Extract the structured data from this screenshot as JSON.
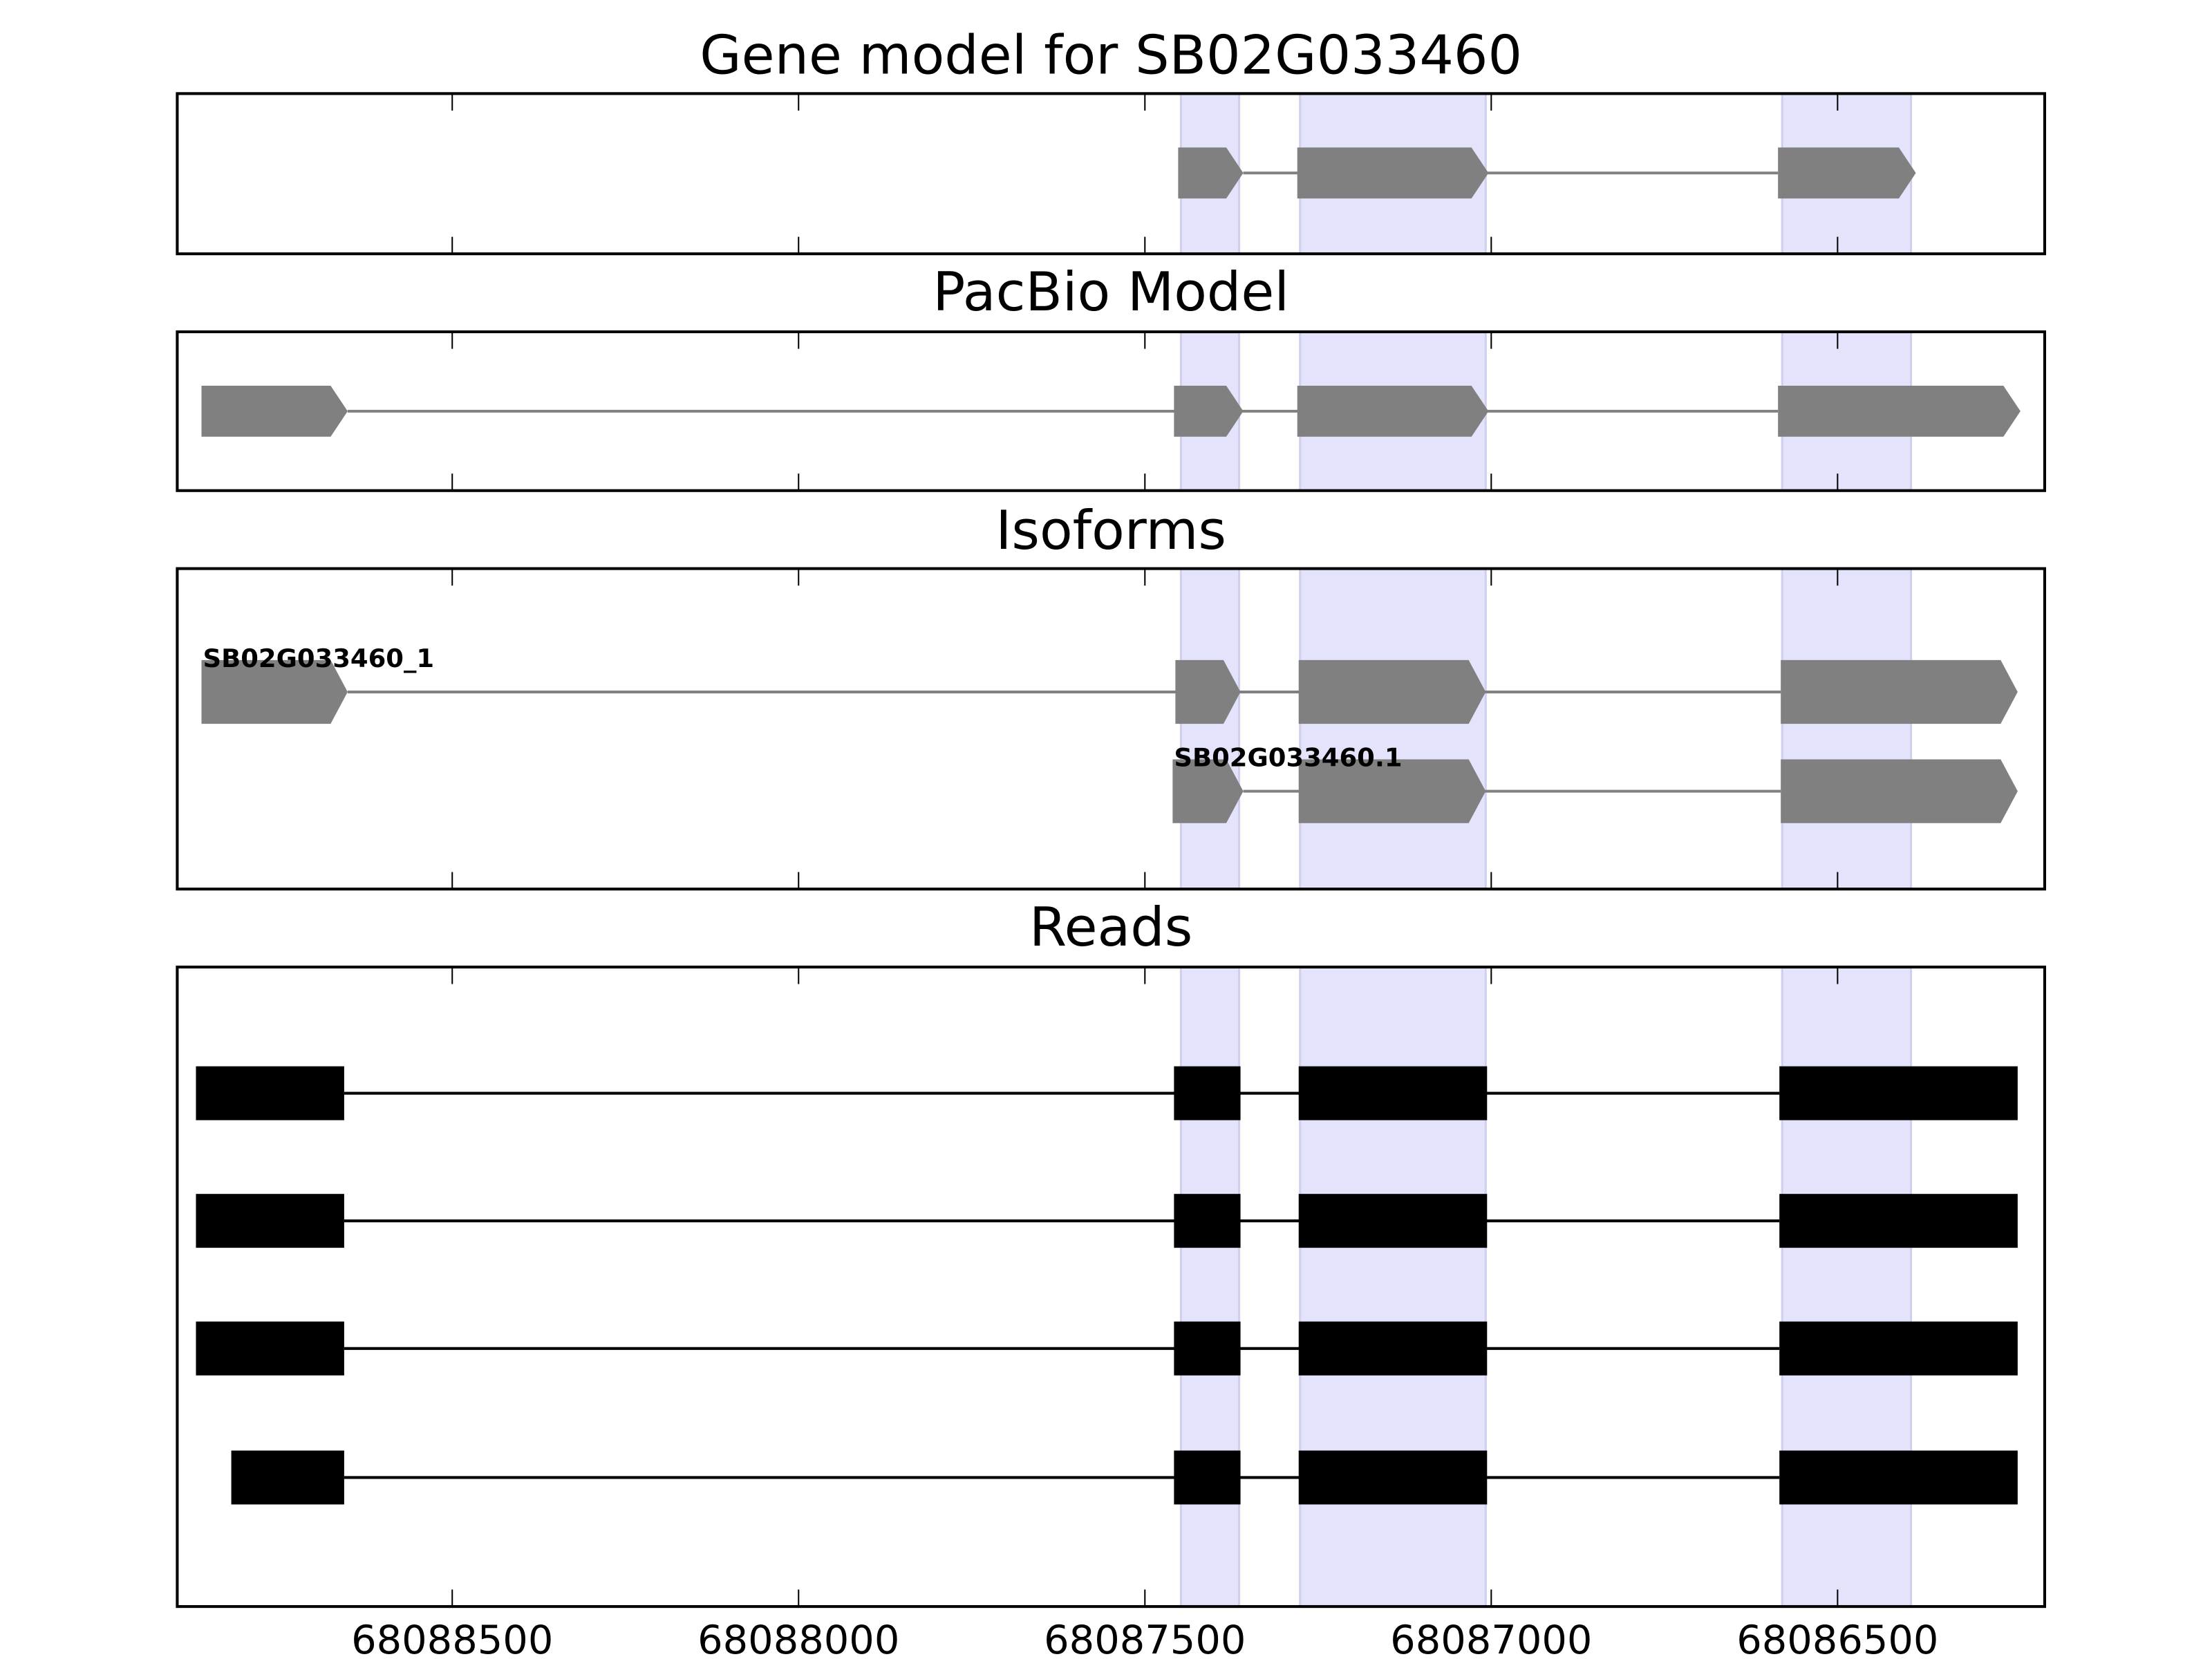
{
  "chart_data": {
    "type": "gene-track",
    "xlim": [
      68088897,
      68086201
    ],
    "x_ticks": [
      68088500,
      68088000,
      68087500,
      68087000,
      68086500
    ],
    "x_tick_labels": [
      "68088500",
      "68088000",
      "68087500",
      "68087000",
      "68086500"
    ],
    "highlight_regions": [
      [
        68087448,
        68087364
      ],
      [
        68087276,
        68087008
      ],
      [
        68086580,
        68086394
      ]
    ],
    "colors": {
      "exon": "#808080",
      "read": "#000000",
      "highlight": "#e3e3fc",
      "highlight_edge": "#d0d0ee"
    },
    "panels": [
      {
        "title": "Gene model for SB02G033460",
        "kind": "model",
        "tracks": [
          {
            "label": null,
            "exons": [
              [
                68087452,
                68087358
              ],
              [
                68087280,
                68087004
              ],
              [
                68086586,
                68086387
              ]
            ]
          }
        ]
      },
      {
        "title": "PacBio Model",
        "kind": "model",
        "tracks": [
          {
            "label": null,
            "exons": [
              [
                68088862,
                68088651
              ],
              [
                68087458,
                68087358
              ],
              [
                68087280,
                68087004
              ],
              [
                68086586,
                68086236
              ]
            ]
          }
        ]
      },
      {
        "title": "Isoforms",
        "kind": "model",
        "tracks": [
          {
            "label": "SB02G033460_1",
            "exons": [
              [
                68088862,
                68088651
              ],
              [
                68087456,
                68087362
              ],
              [
                68087278,
                68087008
              ],
              [
                68086582,
                68086240
              ]
            ]
          },
          {
            "label": "SB02G033460.1",
            "exons": [
              [
                68087460,
                68087358
              ],
              [
                68087278,
                68087008
              ],
              [
                68086582,
                68086240
              ]
            ]
          }
        ]
      },
      {
        "title": "Reads",
        "kind": "reads",
        "tracks": [
          {
            "label": null,
            "exons": [
              [
                68088870,
                68088656
              ],
              [
                68087458,
                68087362
              ],
              [
                68087278,
                68087006
              ],
              [
                68086584,
                68086240
              ]
            ]
          },
          {
            "label": null,
            "exons": [
              [
                68088870,
                68088656
              ],
              [
                68087458,
                68087362
              ],
              [
                68087278,
                68087006
              ],
              [
                68086584,
                68086240
              ]
            ]
          },
          {
            "label": null,
            "exons": [
              [
                68088870,
                68088656
              ],
              [
                68087458,
                68087362
              ],
              [
                68087278,
                68087006
              ],
              [
                68086584,
                68086240
              ]
            ]
          },
          {
            "label": null,
            "exons": [
              [
                68088819,
                68088656
              ],
              [
                68087458,
                68087362
              ],
              [
                68087278,
                68087006
              ],
              [
                68086584,
                68086240
              ]
            ]
          }
        ]
      }
    ]
  }
}
